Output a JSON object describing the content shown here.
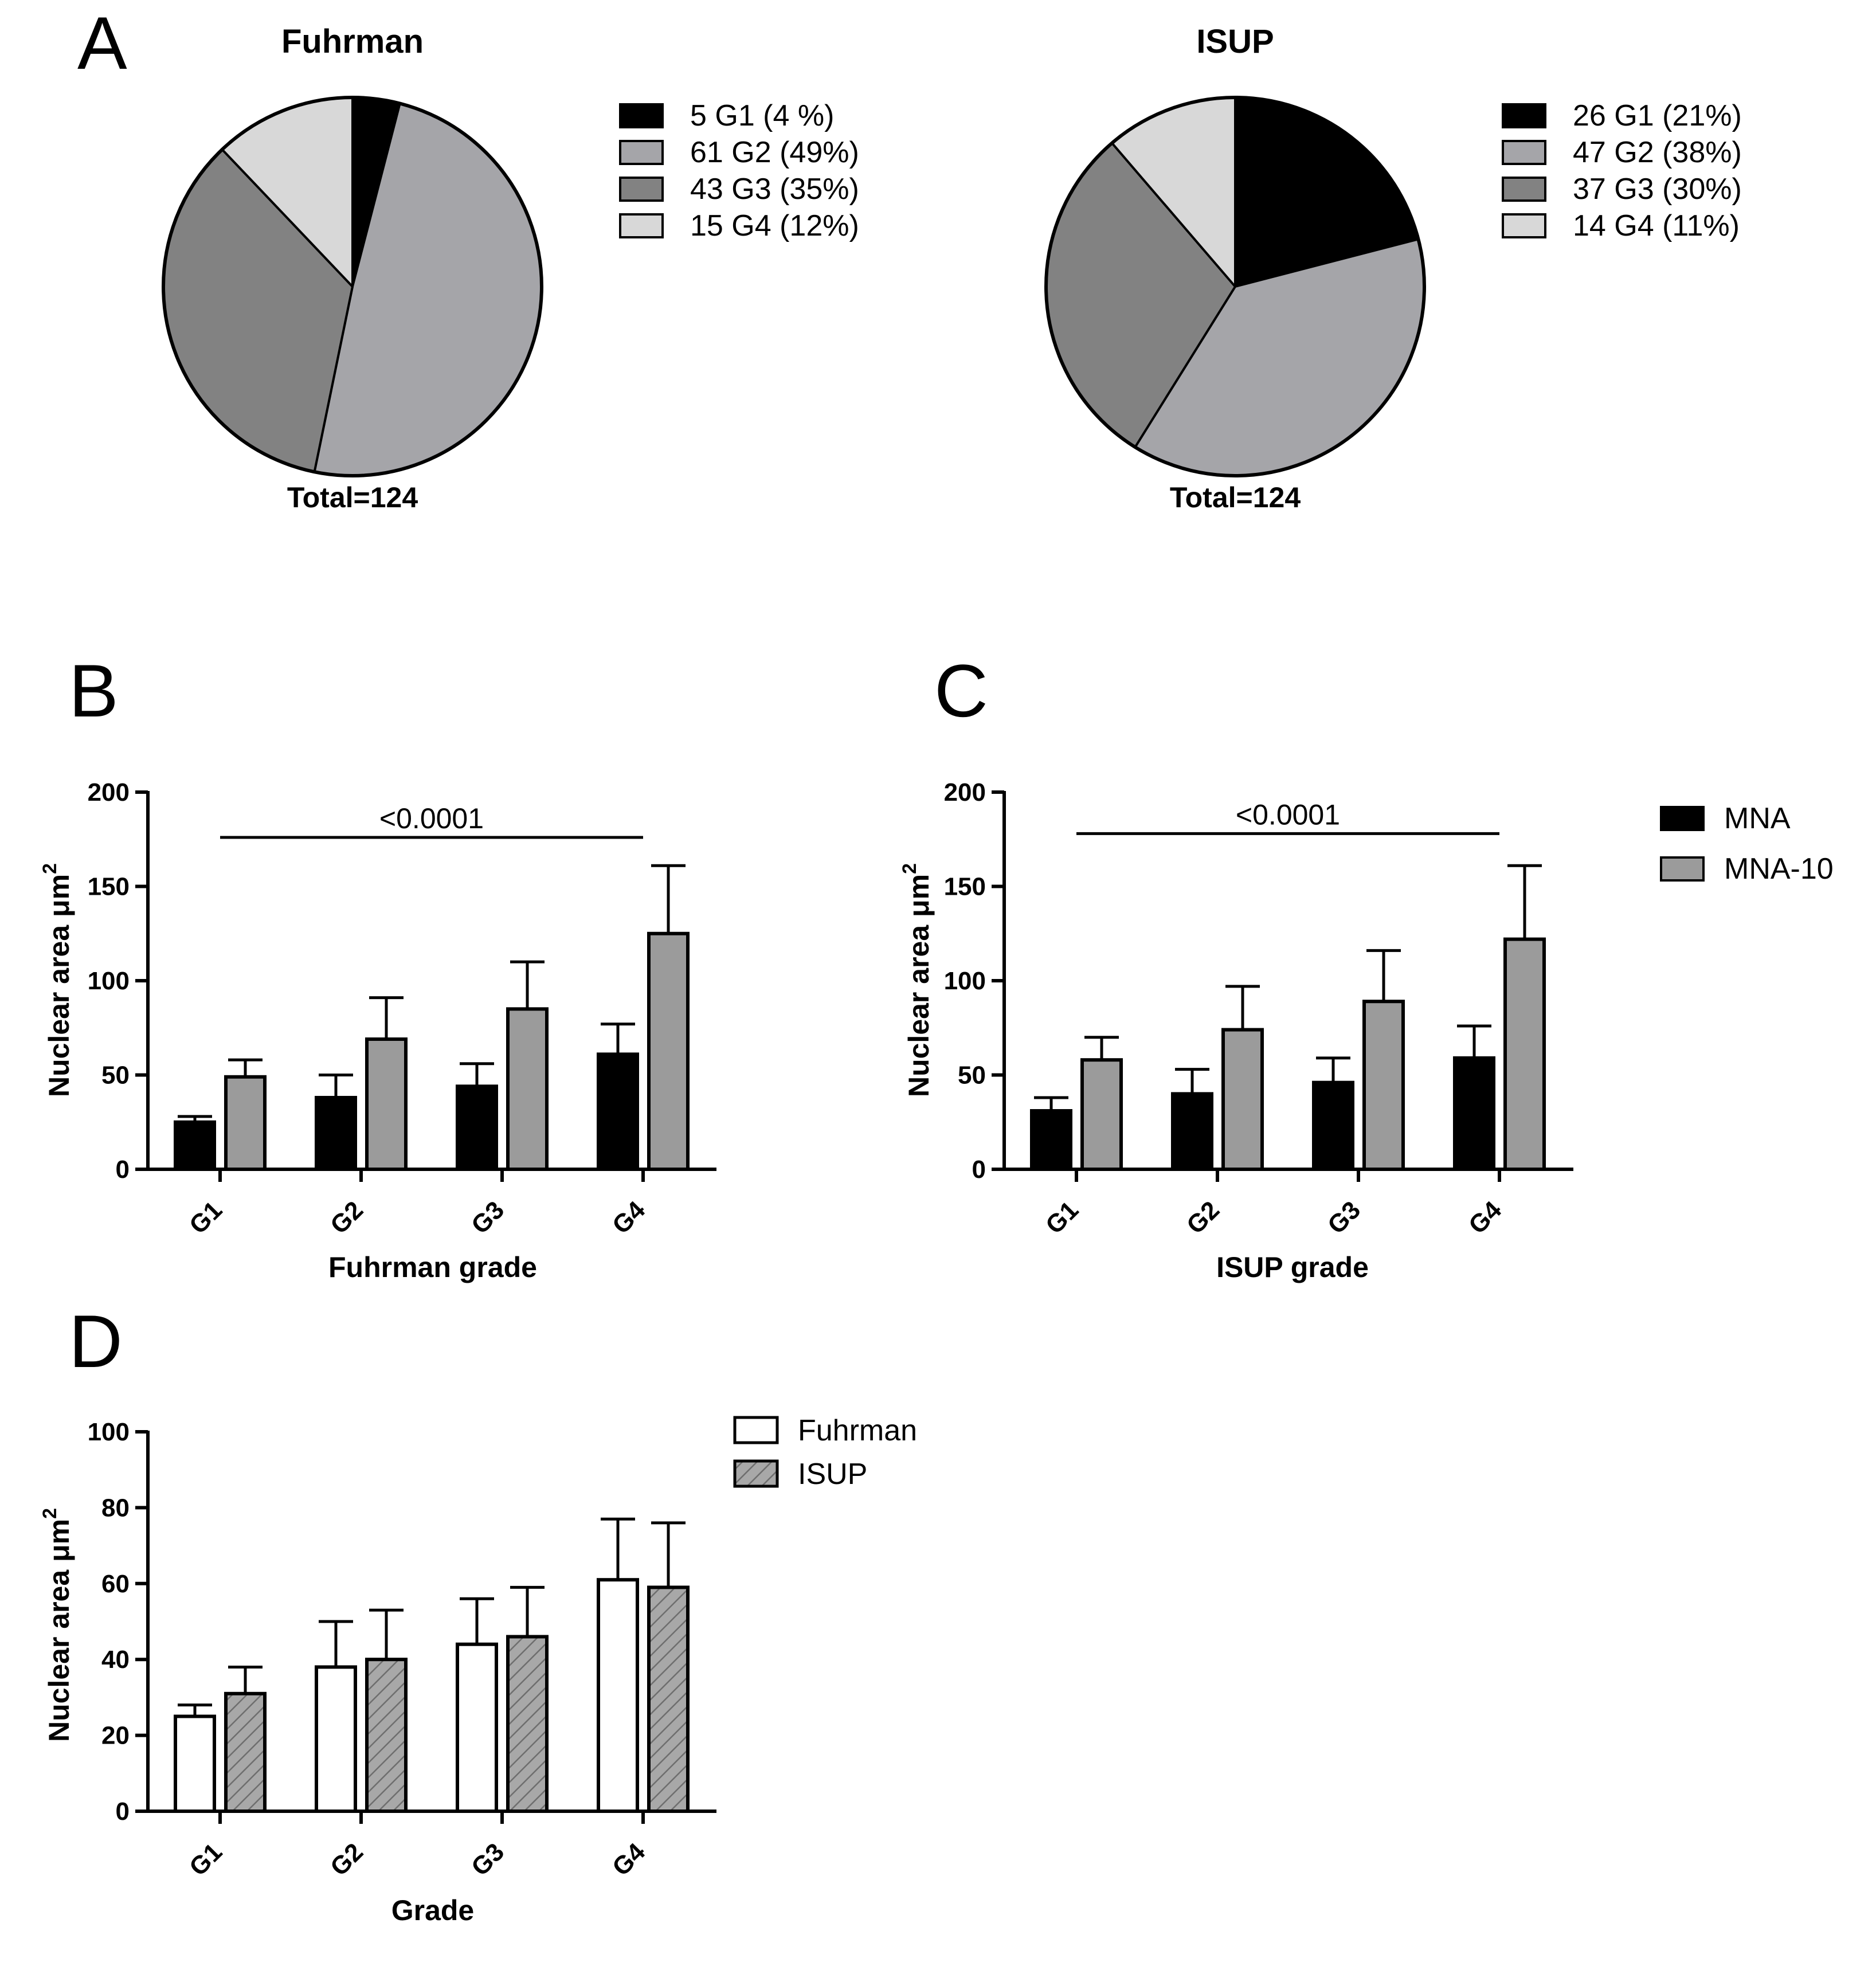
{
  "figure": {
    "panel_labels": [
      "A",
      "B",
      "C",
      "D"
    ]
  },
  "colors": {
    "g1": "#000000",
    "g2": "#a5a5a9",
    "g3": "#828282",
    "g4": "#d8d8d8",
    "mna": "#000000",
    "mna10": "#9b9b9b",
    "fuhrman": "#ffffff",
    "isup": "#a8a8a8"
  },
  "chart_data": [
    {
      "id": "A-fuhrman",
      "type": "pie",
      "title": "Fuhrman",
      "total_label": "Total=124",
      "categories": [
        "G1",
        "G2",
        "G3",
        "G4"
      ],
      "values": [
        5,
        61,
        43,
        15
      ],
      "legend": [
        "5 G1 (4 %)",
        "61 G2 (49%)",
        "43 G3 (35%)",
        "15 G4 (12%)"
      ],
      "legend_position": "right"
    },
    {
      "id": "A-isup",
      "type": "pie",
      "title": "ISUP",
      "total_label": "Total=124",
      "categories": [
        "G1",
        "G2",
        "G3",
        "G4"
      ],
      "values": [
        26,
        47,
        37,
        14
      ],
      "legend": [
        "26 G1 (21%)",
        "47 G2 (38%)",
        "37 G3 (30%)",
        "14 G4 (11%)"
      ],
      "legend_position": "right"
    },
    {
      "id": "B",
      "type": "bar",
      "categories": [
        "G1",
        "G2",
        "G3",
        "G4"
      ],
      "series": [
        {
          "name": "MNA",
          "values": [
            25,
            38,
            44,
            61
          ],
          "errors": [
            3,
            12,
            12,
            16
          ]
        },
        {
          "name": "MNA-10",
          "values": [
            49,
            69,
            85,
            125
          ],
          "errors": [
            9,
            22,
            25,
            36
          ]
        }
      ],
      "xlabel": "Fuhrman grade",
      "ylabel": "Nuclear area μm",
      "ylabel_superscript": "2",
      "ylim": [
        0,
        200
      ],
      "yticks": [
        0,
        50,
        100,
        150,
        200
      ],
      "significance": {
        "label": "<0.0001",
        "y": 176,
        "from": "G1",
        "to": "G4"
      }
    },
    {
      "id": "C",
      "type": "bar",
      "categories": [
        "G1",
        "G2",
        "G3",
        "G4"
      ],
      "series": [
        {
          "name": "MNA",
          "values": [
            31,
            40,
            46,
            59
          ],
          "errors": [
            7,
            13,
            13,
            17
          ]
        },
        {
          "name": "MNA-10",
          "values": [
            58,
            74,
            89,
            122
          ],
          "errors": [
            12,
            23,
            27,
            39
          ]
        }
      ],
      "xlabel": "ISUP grade",
      "ylabel": "Nuclear area μm",
      "ylabel_superscript": "2",
      "ylim": [
        0,
        200
      ],
      "yticks": [
        0,
        50,
        100,
        150,
        200
      ],
      "legend": [
        "MNA",
        "MNA-10"
      ],
      "legend_position": "right",
      "significance": {
        "label": "<0.0001",
        "y": 178,
        "from": "G1",
        "to": "G4"
      }
    },
    {
      "id": "D",
      "type": "bar",
      "categories": [
        "G1",
        "G2",
        "G3",
        "G4"
      ],
      "series": [
        {
          "name": "Fuhrman",
          "values": [
            25,
            38,
            44,
            61
          ],
          "errors": [
            3,
            12,
            12,
            16
          ]
        },
        {
          "name": "ISUP",
          "values": [
            31,
            40,
            46,
            59
          ],
          "errors": [
            7,
            13,
            13,
            17
          ]
        }
      ],
      "xlabel": "Grade",
      "ylabel": "Nuclear area μm",
      "ylabel_superscript": "2",
      "ylim": [
        0,
        100
      ],
      "yticks": [
        0,
        20,
        40,
        60,
        80,
        100
      ],
      "legend": [
        "Fuhrman",
        "ISUP"
      ],
      "legend_position": "top-right"
    }
  ]
}
